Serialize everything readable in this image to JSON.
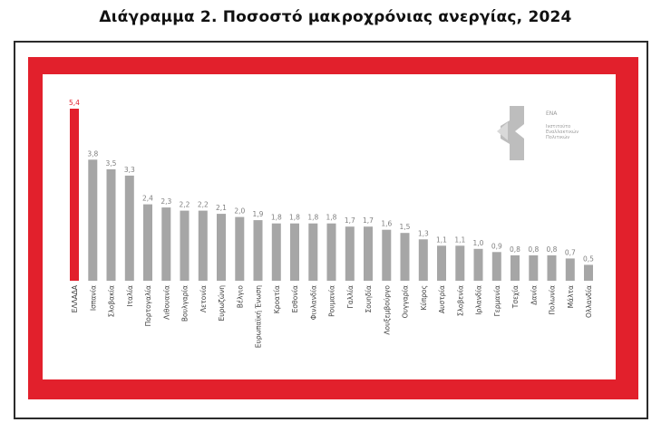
{
  "title": "Διάγραμμα 2. Ποσοστό μακροχρόνιας ανεργίας, 2024",
  "logo": {
    "name": "ΕΝΑ",
    "tagline_lines": [
      "Ινστιτούτο",
      "Εναλλακτικών",
      "Πολιτικών"
    ],
    "color": "#bdbdbd"
  },
  "colors": {
    "frame_red": "#e2202c",
    "highlight_bar": "#e2202c",
    "bar": "#a6a6a6",
    "label_highlight": "#e2202c",
    "label": "#7f7f7f"
  },
  "chart_data": {
    "type": "bar",
    "title": "Διάγραμμα 2. Ποσοστό μακροχρόνιας ανεργίας, 2024",
    "xlabel": "",
    "ylabel": "",
    "ylim": [
      0,
      5.4
    ],
    "grid": false,
    "legend": "none",
    "highlight_index": 0,
    "categories": [
      "ΕΛΛΑΔΑ",
      "Ισπανία",
      "Σλοβακία",
      "Ιταλία",
      "Πορτογαλία",
      "Λιθουανία",
      "Βουλγαρία",
      "Λετονία",
      "Ευρωζώνη",
      "Βέλγιο",
      "Ευρωπαϊκή Ένωση",
      "Κροατία",
      "Εσθονία",
      "Φινλανδία",
      "Ρουμανία",
      "Γαλλία",
      "Σουηδία",
      "Λουξεμβούργο",
      "Ουγγαρία",
      "Κύπρος",
      "Αυστρία",
      "Σλοβενία",
      "Ιρλανδία",
      "Γερμανία",
      "Τσεχία",
      "Δανία",
      "Πολωνία",
      "Μάλτα",
      "Ολλανδία"
    ],
    "values": [
      5.4,
      3.8,
      3.5,
      3.3,
      2.4,
      2.3,
      2.2,
      2.2,
      2.1,
      2.0,
      1.9,
      1.8,
      1.8,
      1.8,
      1.8,
      1.7,
      1.7,
      1.6,
      1.5,
      1.3,
      1.1,
      1.1,
      1.0,
      0.9,
      0.8,
      0.8,
      0.8,
      0.7,
      0.5
    ],
    "value_labels": [
      "5,4",
      "3,8",
      "3,5",
      "3,3",
      "2,4",
      "2,3",
      "2,2",
      "2,2",
      "2,1",
      "2,0",
      "1,9",
      "1,8",
      "1,8",
      "1,8",
      "1,8",
      "1,7",
      "1,7",
      "1,6",
      "1,5",
      "1,3",
      "1,1",
      "1,1",
      "1,0",
      "0,9",
      "0,8",
      "0,8",
      "0,8",
      "0,7",
      "0,5"
    ]
  }
}
